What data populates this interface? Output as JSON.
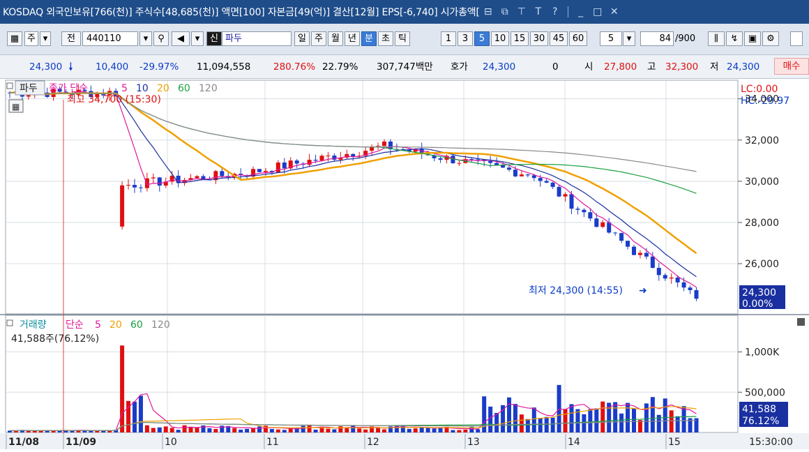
{
  "titlebar": {
    "text": "KOSDAQ 외국인보유[766(천)] 주식수[48,685(천)] 액면[100] 자본금[49(억)] 결산[12월] EPS[-6,740] 시가총액[",
    "icons": [
      "window-icon",
      "restore-icon",
      "pin-icon",
      "font-icon",
      "help-icon",
      "minimize-icon",
      "maximize-icon",
      "close-icon"
    ]
  },
  "toolbar": {
    "ju_label": "주",
    "jeon_label": "전",
    "code_value": "440110",
    "search_icon": "search-icon",
    "sound_icon": "speaker-icon",
    "shin_badge": "신",
    "name_value": "파두",
    "periods": [
      "일",
      "주",
      "월",
      "년",
      "분",
      "초",
      "틱"
    ],
    "selected_period": "분",
    "intervals": [
      "1",
      "3",
      "5",
      "10",
      "15",
      "30",
      "45",
      "60"
    ],
    "selected_interval": "5",
    "count_value": "5",
    "page_value": "84",
    "page_total": "/900"
  },
  "quote": {
    "price": "24,300",
    "arrow": "down-arrow-icon",
    "change": "10,400",
    "change_pct": "-29.97%",
    "volume": "11,094,558",
    "vol_ratio": "280.76%",
    "turnover": "22.79%",
    "amount": "307,747백만",
    "hoga_label": "호가",
    "hoga_value": "24,300",
    "zero": "0",
    "open_label": "시",
    "open": "27,800",
    "high_label": "고",
    "high": "32,300",
    "low_label": "저",
    "low": "24,300",
    "buy_button": "매수"
  },
  "price_panel": {
    "legend_name": "파두",
    "legend_ma": "종가 단순",
    "ma_periods": [
      "5",
      "10",
      "20",
      "60",
      "120"
    ],
    "ma_colors": [
      "#e0179b",
      "#1a2fa0",
      "#f0a000",
      "#1aa040",
      "#888888"
    ],
    "lc": "LC:0.00",
    "hc": "HC:-29.97",
    "max_annotation": "최고 34,700 (15:30)",
    "min_annotation": "최저 24,300 (14:55)",
    "y_ticks": [
      "34,000",
      "32,000",
      "30,000",
      "28,000",
      "26,000"
    ],
    "last_price": "24,300",
    "last_pct": "0.00%"
  },
  "volume_panel": {
    "legend_name": "거래량",
    "legend_ma": "단순",
    "ma_periods": [
      "5",
      "20",
      "60",
      "120"
    ],
    "ma_colors": [
      "#e0179b",
      "#f0a000",
      "#1aa040",
      "#888888"
    ],
    "subtitle": "41,588주(76.12%)",
    "y_ticks": [
      "1,000K",
      "500,000"
    ],
    "last_volume": "41,588",
    "last_pct": "76.12%"
  },
  "x_axis": {
    "labels": [
      "11/08",
      "11/09",
      "10",
      "11",
      "12",
      "13",
      "14",
      "15"
    ],
    "time": "15:30:00"
  },
  "chart_data": {
    "type": "candlestick",
    "ylim": [
      23800,
      34700
    ],
    "volume_ylim": [
      0,
      1100000
    ],
    "segments": [
      {
        "x": [
          0,
          18
        ],
        "y": [
          34300,
          34300
        ]
      },
      {
        "x": [
          18,
          38
        ],
        "y": [
          29800,
          30400
        ]
      },
      {
        "x": [
          38,
          60
        ],
        "y": [
          30400,
          31700
        ]
      },
      {
        "x": [
          60,
          84
        ],
        "y": [
          31700,
          30300
        ]
      },
      {
        "x": [
          84,
          110
        ],
        "y": [
          30300,
          24300
        ]
      }
    ]
  }
}
